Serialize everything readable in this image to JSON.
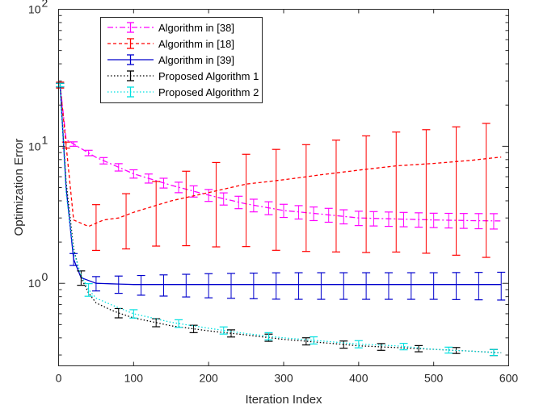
{
  "chart_data": {
    "type": "line",
    "xlabel": "Iteration Index",
    "ylabel": "Optimization Error",
    "xlim": [
      0,
      600
    ],
    "ylim": [
      0.25,
      100
    ],
    "yscale": "log",
    "xticks": [
      "0",
      "100",
      "200",
      "300",
      "400",
      "500",
      "600"
    ],
    "yticks": [
      {
        "base": "10",
        "exp": "0",
        "value": 1
      },
      {
        "base": "10",
        "exp": "1",
        "value": 10
      },
      {
        "base": "10",
        "exp": "2",
        "value": 100
      }
    ],
    "grid": false,
    "legend_position": "top-left",
    "series": [
      {
        "name": "Algorithm in [38]",
        "color": "#ff00ff",
        "line_style": "dash-dot",
        "points": [
          [
            2,
            28
          ],
          [
            10,
            11.2
          ],
          [
            50,
            8.3
          ],
          [
            100,
            6.3
          ],
          [
            150,
            5.2
          ],
          [
            200,
            4.4
          ],
          [
            250,
            3.8
          ],
          [
            300,
            3.4
          ],
          [
            350,
            3.2
          ],
          [
            400,
            3.0
          ],
          [
            450,
            2.95
          ],
          [
            500,
            2.9
          ],
          [
            550,
            2.87
          ],
          [
            595,
            2.85
          ]
        ],
        "error": [
          [
            2,
            0.03
          ],
          [
            100,
            0.07
          ],
          [
            200,
            0.1
          ],
          [
            300,
            0.11
          ],
          [
            400,
            0.12
          ],
          [
            500,
            0.12
          ],
          [
            595,
            0.13
          ]
        ]
      },
      {
        "name": "Algorithm in [18]",
        "color": "#ff0000",
        "line_style": "dash",
        "points": [
          [
            2,
            28
          ],
          [
            20,
            2.9
          ],
          [
            40,
            2.6
          ],
          [
            60,
            2.9
          ],
          [
            80,
            3.0
          ],
          [
            100,
            3.3
          ],
          [
            150,
            4.0
          ],
          [
            200,
            4.6
          ],
          [
            250,
            5.3
          ],
          [
            300,
            5.7
          ],
          [
            350,
            6.2
          ],
          [
            400,
            6.7
          ],
          [
            450,
            7.2
          ],
          [
            500,
            7.5
          ],
          [
            550,
            7.9
          ],
          [
            595,
            8.4
          ]
        ],
        "error": [
          [
            2,
            0.05
          ],
          [
            20,
            0.05
          ],
          [
            40,
            0.35
          ],
          [
            100,
            0.45
          ],
          [
            200,
            0.6
          ],
          [
            300,
            0.7
          ],
          [
            400,
            0.75
          ],
          [
            500,
            0.78
          ],
          [
            595,
            0.82
          ]
        ]
      },
      {
        "name": "Algorithm in [39]",
        "color": "#0000cc",
        "line_style": "solid",
        "points": [
          [
            2,
            28
          ],
          [
            10,
            5
          ],
          [
            20,
            1.5
          ],
          [
            30,
            1.1
          ],
          [
            50,
            1.0
          ],
          [
            100,
            0.98
          ],
          [
            200,
            0.98
          ],
          [
            300,
            0.98
          ],
          [
            400,
            0.98
          ],
          [
            500,
            0.98
          ],
          [
            595,
            0.98
          ]
        ],
        "error": [
          [
            2,
            0.03
          ],
          [
            20,
            0.1
          ],
          [
            50,
            0.12
          ],
          [
            100,
            0.16
          ],
          [
            200,
            0.2
          ],
          [
            300,
            0.22
          ],
          [
            400,
            0.22
          ],
          [
            500,
            0.22
          ],
          [
            595,
            0.23
          ]
        ]
      },
      {
        "name": "Proposed Algorithm 1",
        "color": "#000000",
        "line_style": "dot",
        "points": [
          [
            2,
            28
          ],
          [
            10,
            5.5
          ],
          [
            20,
            1.8
          ],
          [
            30,
            1.1
          ],
          [
            40,
            0.85
          ],
          [
            50,
            0.72
          ],
          [
            75,
            0.62
          ],
          [
            100,
            0.56
          ],
          [
            150,
            0.49
          ],
          [
            200,
            0.45
          ],
          [
            250,
            0.42
          ],
          [
            300,
            0.39
          ],
          [
            350,
            0.37
          ],
          [
            400,
            0.35
          ],
          [
            450,
            0.34
          ],
          [
            500,
            0.33
          ],
          [
            550,
            0.32
          ],
          [
            595,
            0.31
          ]
        ],
        "error": [
          [
            2,
            0.03
          ],
          [
            10,
            0.1
          ],
          [
            30,
            0.12
          ],
          [
            50,
            0.09
          ],
          [
            100,
            0.07
          ],
          [
            200,
            0.06
          ],
          [
            300,
            0.06
          ],
          [
            400,
            0.06
          ],
          [
            500,
            0.05
          ],
          [
            595,
            0.05
          ]
        ]
      },
      {
        "name": "Proposed Algorithm 2",
        "color": "#00e0e0",
        "line_style": "dot",
        "points": [
          [
            2,
            28
          ],
          [
            10,
            4.5
          ],
          [
            20,
            1.7
          ],
          [
            30,
            1.15
          ],
          [
            40,
            0.9
          ],
          [
            50,
            0.78
          ],
          [
            75,
            0.68
          ],
          [
            100,
            0.6
          ],
          [
            150,
            0.52
          ],
          [
            200,
            0.47
          ],
          [
            250,
            0.43
          ],
          [
            300,
            0.4
          ],
          [
            350,
            0.38
          ],
          [
            400,
            0.36
          ],
          [
            450,
            0.35
          ],
          [
            500,
            0.33
          ],
          [
            550,
            0.32
          ],
          [
            595,
            0.31
          ]
        ],
        "error": [
          [
            2,
            0.03
          ],
          [
            10,
            0.1
          ],
          [
            30,
            0.12
          ],
          [
            50,
            0.09
          ],
          [
            100,
            0.07
          ],
          [
            200,
            0.06
          ],
          [
            300,
            0.06
          ],
          [
            400,
            0.06
          ],
          [
            500,
            0.05
          ],
          [
            595,
            0.05
          ]
        ]
      }
    ]
  }
}
